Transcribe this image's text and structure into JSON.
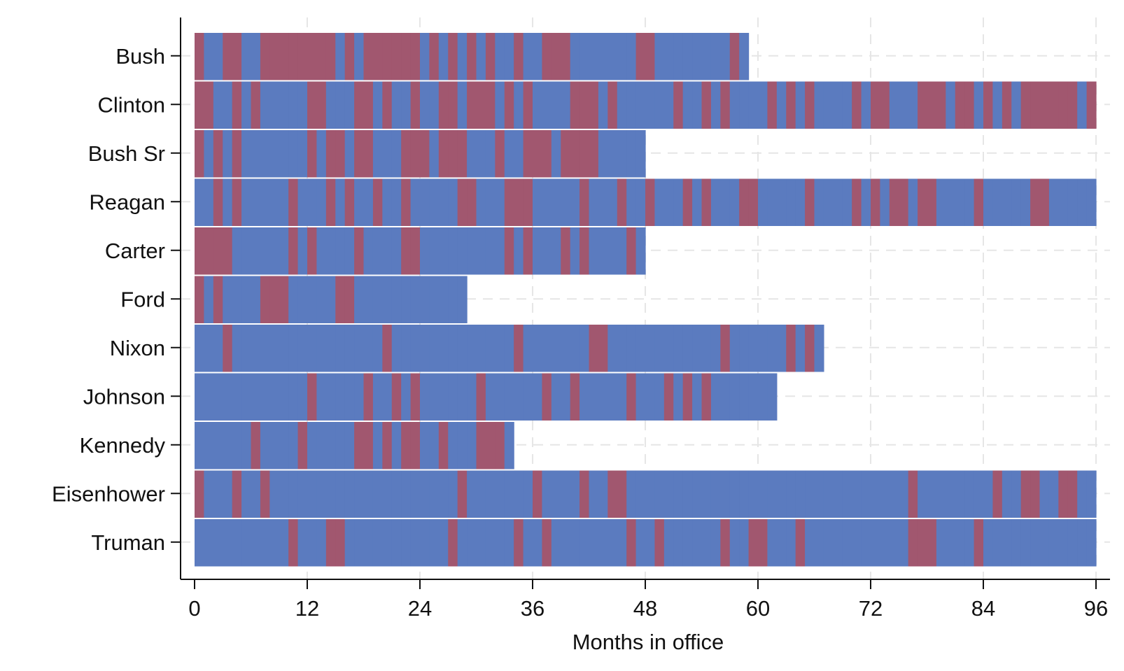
{
  "chart_data": {
    "type": "heatmap",
    "title": "",
    "xlabel": "Months in office",
    "ylabel": "",
    "xlim": [
      0,
      96
    ],
    "xticks": [
      0,
      12,
      24,
      36,
      48,
      60,
      72,
      84,
      96
    ],
    "grid": true,
    "legend": "none",
    "colors": {
      "state_a": "#5b7bbf",
      "state_b": "#a1576f",
      "background": "#ffffff",
      "grid": "#e6e6e6",
      "axis": "#111111"
    },
    "presidents": [
      {
        "name": "Bush",
        "months": 59,
        "red_months": [
          1,
          4,
          5,
          8,
          9,
          10,
          11,
          12,
          13,
          14,
          15,
          17,
          19,
          20,
          21,
          22,
          23,
          24,
          26,
          28,
          30,
          32,
          35,
          38,
          39,
          40,
          48,
          49,
          58
        ]
      },
      {
        "name": "Clinton",
        "months": 96,
        "red_months": [
          1,
          2,
          5,
          7,
          13,
          14,
          18,
          19,
          21,
          24,
          27,
          28,
          30,
          31,
          32,
          34,
          36,
          41,
          42,
          43,
          45,
          52,
          55,
          57,
          62,
          64,
          66,
          71,
          73,
          74,
          78,
          79,
          80,
          82,
          83,
          85,
          87,
          89,
          90,
          91,
          92,
          93,
          94,
          96
        ]
      },
      {
        "name": "Bush Sr",
        "months": 48,
        "red_months": [
          1,
          3,
          5,
          13,
          15,
          16,
          18,
          19,
          23,
          24,
          25,
          27,
          28,
          29,
          33,
          36,
          37,
          38,
          40,
          41,
          42,
          43
        ]
      },
      {
        "name": "Reagan",
        "months": 96,
        "red_months": [
          3,
          5,
          11,
          15,
          17,
          20,
          23,
          29,
          30,
          34,
          35,
          36,
          42,
          46,
          49,
          53,
          55,
          59,
          60,
          66,
          71,
          73,
          75,
          76,
          78,
          79,
          84,
          90,
          91
        ]
      },
      {
        "name": "Carter",
        "months": 48,
        "red_months": [
          1,
          2,
          3,
          4,
          11,
          13,
          18,
          23,
          24,
          34,
          36,
          40,
          42,
          47
        ]
      },
      {
        "name": "Ford",
        "months": 29,
        "red_months": [
          1,
          3,
          8,
          9,
          10,
          16,
          17
        ]
      },
      {
        "name": "Nixon",
        "months": 67,
        "red_months": [
          4,
          21,
          35,
          43,
          44,
          57,
          64,
          66
        ]
      },
      {
        "name": "Johnson",
        "months": 62,
        "red_months": [
          13,
          19,
          22,
          24,
          31,
          38,
          41,
          47,
          51,
          53,
          55
        ]
      },
      {
        "name": "Kennedy",
        "months": 34,
        "red_months": [
          7,
          12,
          18,
          19,
          21,
          23,
          24,
          27,
          31,
          32,
          33
        ]
      },
      {
        "name": "Eisenhower",
        "months": 96,
        "red_months": [
          1,
          5,
          8,
          29,
          37,
          42,
          45,
          46,
          77,
          86,
          89,
          90,
          93,
          94
        ]
      },
      {
        "name": "Truman",
        "months": 96,
        "red_months": [
          11,
          15,
          16,
          28,
          35,
          38,
          47,
          50,
          57,
          60,
          61,
          65,
          77,
          78,
          79,
          84
        ]
      }
    ]
  }
}
